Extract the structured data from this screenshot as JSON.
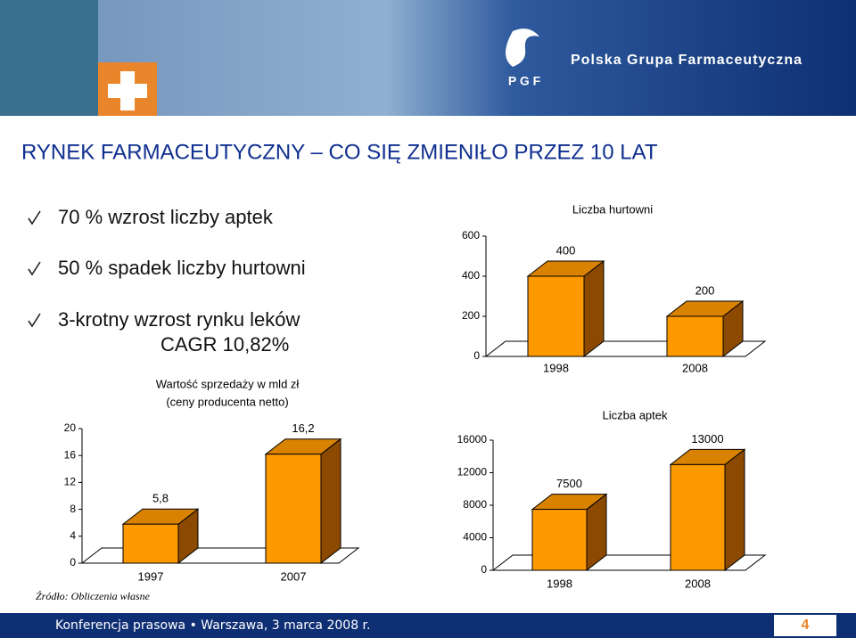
{
  "header": {
    "brand": "Polska Grupa Farmaceutyczna",
    "logo": "P G F"
  },
  "title": "RYNEK FARMACEUTYCZNY – CO SIĘ ZMIENIŁO PRZEZ 10 LAT",
  "bullets": [
    "70 % wzrost liczby aptek",
    "50 % spadek liczby hurtowni",
    "3-krotny wzrost rynku leków",
    "CAGR 10,82%"
  ],
  "source": "Źródło: Obliczenia własne",
  "footer": {
    "text": "Konferencja prasowa • Warszawa, 3 marca 2008 r.",
    "page": "4"
  },
  "chart_data": [
    {
      "type": "bar",
      "title": [
        "Wartość sprzedaży w mld zł",
        "(ceny producenta netto)"
      ],
      "categories": [
        "1997",
        "2007"
      ],
      "values": [
        5.8,
        16.2
      ],
      "value_labels": [
        "5,8",
        "16,2"
      ],
      "color": "#ff9900",
      "ylim": [
        0,
        20
      ],
      "yticks": [
        0,
        4,
        8,
        12,
        16,
        20
      ]
    },
    {
      "type": "bar",
      "title": [
        "Liczba hurtowni"
      ],
      "categories": [
        "1998",
        "2008"
      ],
      "values": [
        400,
        200
      ],
      "color": "#ff9900",
      "ylim": [
        0,
        600
      ],
      "yticks": [
        0,
        200,
        400,
        600
      ]
    },
    {
      "type": "bar",
      "title": [
        "Liczba aptek"
      ],
      "categories": [
        "1998",
        "2008"
      ],
      "values": [
        7500,
        13000
      ],
      "color": "#ff9900",
      "ylim": [
        0,
        16000
      ],
      "yticks": [
        0,
        4000,
        8000,
        12000,
        16000
      ]
    }
  ]
}
